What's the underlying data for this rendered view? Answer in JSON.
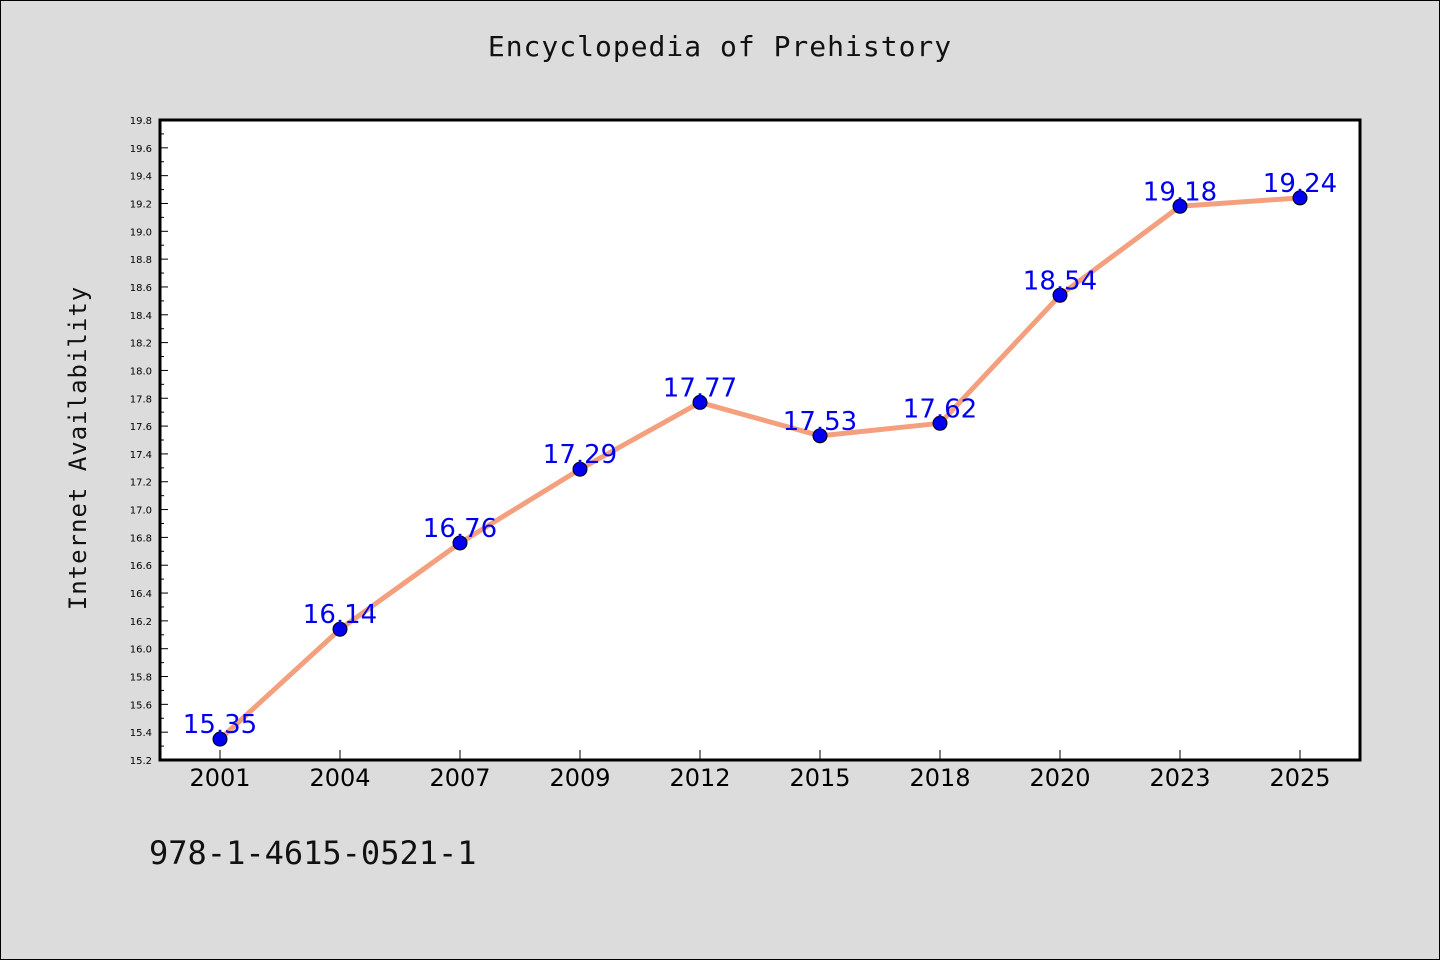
{
  "chart_data": {
    "type": "line",
    "title": "Encyclopedia of Prehistory",
    "xlabel": "",
    "ylabel": "Internet Availability",
    "categories": [
      "2001",
      "2004",
      "2007",
      "2009",
      "2012",
      "2015",
      "2018",
      "2020",
      "2023",
      "2025"
    ],
    "series": [
      {
        "values": [
          15.35,
          16.14,
          16.76,
          17.29,
          17.77,
          17.53,
          17.62,
          18.54,
          19.18,
          19.24
        ],
        "data_labels": [
          "15.35",
          "16.14",
          "16.76",
          "17.29",
          "17.77",
          "17.53",
          "17.62",
          "18.54",
          "19.18",
          "19.24"
        ]
      }
    ],
    "ylim": [
      15.2,
      19.8
    ],
    "yticks": [
      "15.2",
      "15.4",
      "15.6",
      "15.8",
      "16.0",
      "16.2",
      "16.4",
      "16.6",
      "16.8",
      "17.0",
      "17.2",
      "17.4",
      "17.6",
      "17.8",
      "18.0",
      "18.2",
      "18.4",
      "18.6",
      "18.8",
      "19.0",
      "19.2",
      "19.4",
      "19.6",
      "19.8"
    ],
    "grid": false,
    "colors": {
      "line": "#f4a07e",
      "marker": "#0000ee",
      "label": "#0000ee"
    }
  },
  "footer": {
    "isbn": "978-1-4615-0521-1"
  }
}
